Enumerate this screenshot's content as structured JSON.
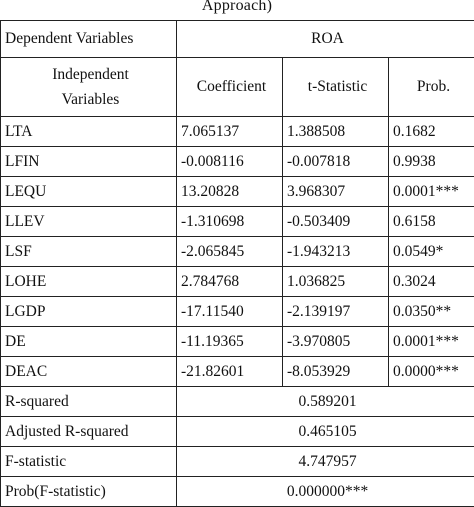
{
  "caption": "Approach)",
  "header": {
    "dependent_label": "Dependent Variables",
    "dependent_value": "ROA",
    "independent_label_line1": "Independent",
    "independent_label_line2": "Variables",
    "col_coefficient": "Coefficient",
    "col_tstat": "t-Statistic",
    "col_prob": "Prob."
  },
  "rows": [
    {
      "var": "LTA",
      "coef": "7.065137",
      "tstat": "1.388508",
      "prob": "0.1682"
    },
    {
      "var": "LFIN",
      "coef": "-0.008116",
      "tstat": "-0.007818",
      "prob": "0.9938"
    },
    {
      "var": "LEQU",
      "coef": "13.20828",
      "tstat": "3.968307",
      "prob": "0.0001***"
    },
    {
      "var": "LLEV",
      "coef": "-1.310698",
      "tstat": "-0.503409",
      "prob": "0.6158"
    },
    {
      "var": "LSF",
      "coef": "-2.065845",
      "tstat": "-1.943213",
      "prob": "0.0549*"
    },
    {
      "var": "LOHE",
      "coef": "2.784768",
      "tstat": "1.036825",
      "prob": "0.3024"
    },
    {
      "var": "LGDP",
      "coef": "-17.11540",
      "tstat": "-2.139197",
      "prob": "0.0350**"
    },
    {
      "var": "DE",
      "coef": "-11.19365",
      "tstat": "-3.970805",
      "prob": "0.0001***"
    },
    {
      "var": "DEAC",
      "coef": "-21.82601",
      "tstat": "-8.053929",
      "prob": "0.0000***"
    }
  ],
  "stats": [
    {
      "label": "R-squared",
      "value": "0.589201"
    },
    {
      "label": "Adjusted R-squared",
      "value": "0.465105"
    },
    {
      "label": "F-statistic",
      "value": "4.747957"
    },
    {
      "label": "Prob(F-statistic)",
      "value": "0.000000***"
    }
  ]
}
